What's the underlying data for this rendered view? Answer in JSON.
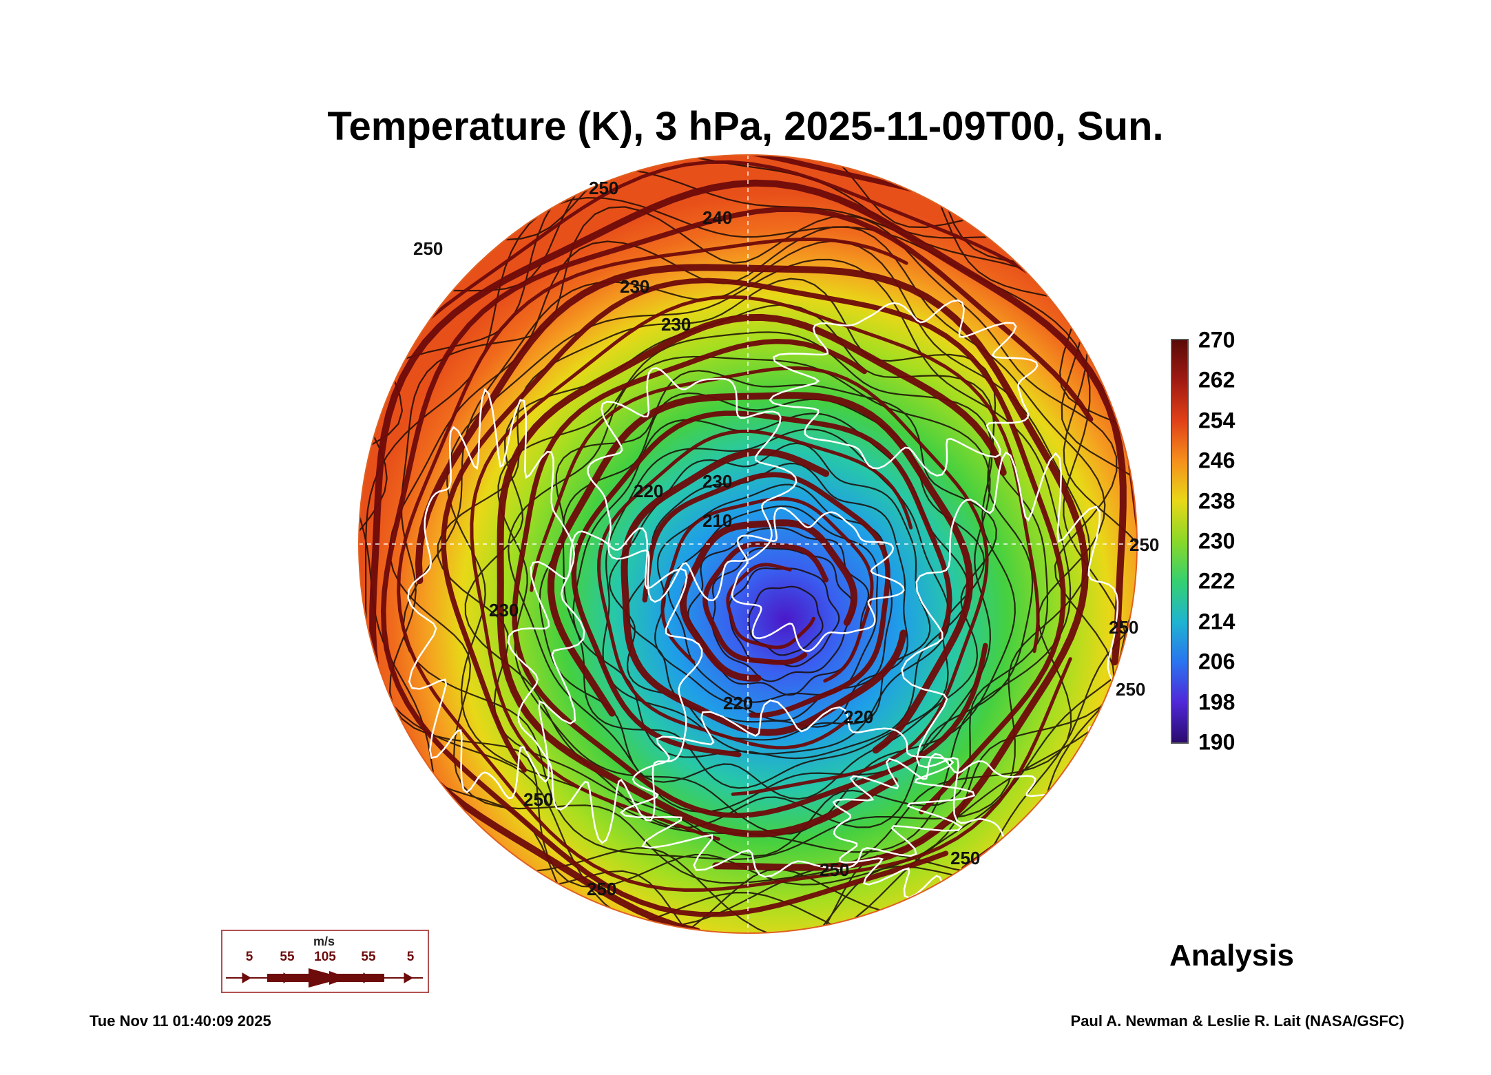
{
  "title": "Temperature (K), 3 hPa, 2025-11-09T00, Sun.",
  "colorbar": {
    "ticks": [
      "270",
      "262",
      "254",
      "246",
      "238",
      "230",
      "222",
      "214",
      "206",
      "198",
      "190"
    ],
    "min": 190,
    "max": 270,
    "colors": [
      "#2a0a6e",
      "#5a1ecf",
      "#3a5ef0",
      "#1f9ee8",
      "#27c8a8",
      "#45d040",
      "#a6de20",
      "#e8d818",
      "#f5a020",
      "#f06a1c",
      "#c82a1a",
      "#5a0a08"
    ]
  },
  "map": {
    "projection": "orthographic polar (north pole)",
    "contour_labels": [
      "250",
      "250",
      "250",
      "240",
      "230",
      "230",
      "230",
      "230",
      "220",
      "220",
      "220",
      "210",
      "250",
      "250",
      "250",
      "250",
      "250",
      "250"
    ],
    "contour_color": "#1a0b05",
    "wind_color": "#6e0b0b",
    "coastline_color": "#ffffff"
  },
  "wind_legend": {
    "unit": "m/s",
    "labels": [
      "5",
      "55",
      "105",
      "55",
      "5"
    ]
  },
  "analysis_label": "Analysis",
  "footer": {
    "timestamp": "Tue Nov 11 01:40:09 2025",
    "credit": "Paul A. Newman & Leslie R. Lait (NASA/GSFC)"
  }
}
